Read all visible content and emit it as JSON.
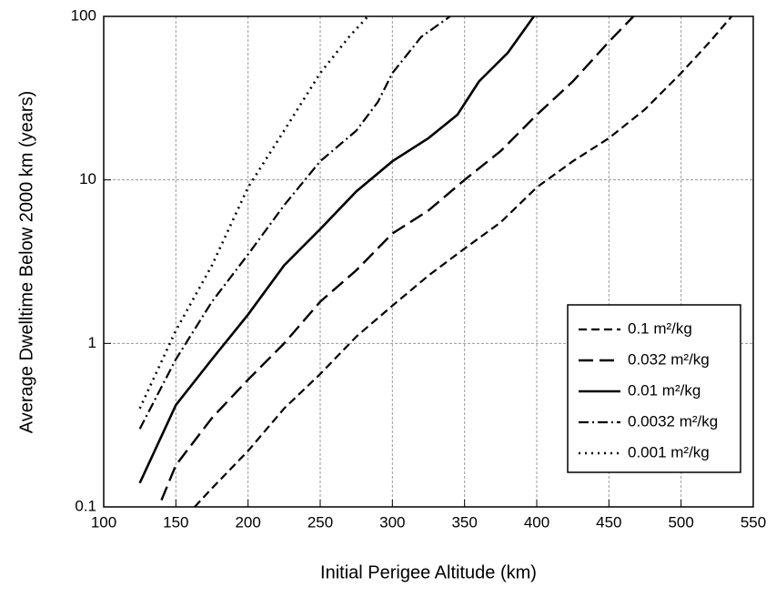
{
  "chart_data": {
    "type": "line",
    "x_label": "Initial Perigee Altitude (km)",
    "y_label": "Average Dwelltime Below 2000 km (years)",
    "xlim": [
      100,
      550
    ],
    "xticks": [
      100,
      150,
      200,
      250,
      300,
      350,
      400,
      450,
      500,
      550
    ],
    "ylim": [
      0.1,
      100
    ],
    "yticks": [
      0.1,
      1,
      10,
      100
    ],
    "yscale": "log",
    "grid": true,
    "legend": "lower right",
    "series": [
      {
        "name": "0.1 m²/kg",
        "color": "#000000",
        "style": "dashed",
        "x": [
          163,
          175,
          200,
          225,
          250,
          275,
          300,
          325,
          350,
          375,
          400,
          425,
          450,
          475,
          500,
          520,
          535
        ],
        "values": [
          0.1,
          0.13,
          0.22,
          0.4,
          0.65,
          1.1,
          1.7,
          2.6,
          3.8,
          5.5,
          9,
          13,
          18,
          27,
          45,
          70,
          100
        ]
      },
      {
        "name": "0.032 m²/kg",
        "color": "#000000",
        "style": "long-dashed",
        "x": [
          140,
          150,
          175,
          200,
          225,
          250,
          275,
          300,
          325,
          350,
          375,
          400,
          425,
          450,
          467
        ],
        "values": [
          0.11,
          0.18,
          0.35,
          0.6,
          1,
          1.8,
          2.8,
          4.7,
          6.5,
          10,
          15,
          25,
          40,
          70,
          100
        ]
      },
      {
        "name": "0.01 m²/kg",
        "color": "#000000",
        "style": "solid",
        "x": [
          125,
          150,
          175,
          200,
          225,
          250,
          275,
          300,
          325,
          345,
          360,
          380,
          398
        ],
        "values": [
          0.14,
          0.42,
          0.8,
          1.5,
          3,
          5,
          8.5,
          13,
          18,
          25,
          40,
          60,
          100
        ]
      },
      {
        "name": "0.0032 m²/kg",
        "color": "#000000",
        "style": "dash-dot",
        "x": [
          125,
          150,
          175,
          200,
          225,
          250,
          275,
          290,
          300,
          320,
          340
        ],
        "values": [
          0.3,
          0.8,
          1.8,
          3.5,
          7,
          13,
          20,
          30,
          45,
          75,
          100
        ]
      },
      {
        "name": "0.001 m²/kg",
        "color": "#000000",
        "style": "dotted",
        "x": [
          125,
          150,
          175,
          200,
          225,
          250,
          270,
          283
        ],
        "values": [
          0.4,
          1.2,
          3,
          9,
          20,
          45,
          75,
          100
        ]
      }
    ]
  }
}
